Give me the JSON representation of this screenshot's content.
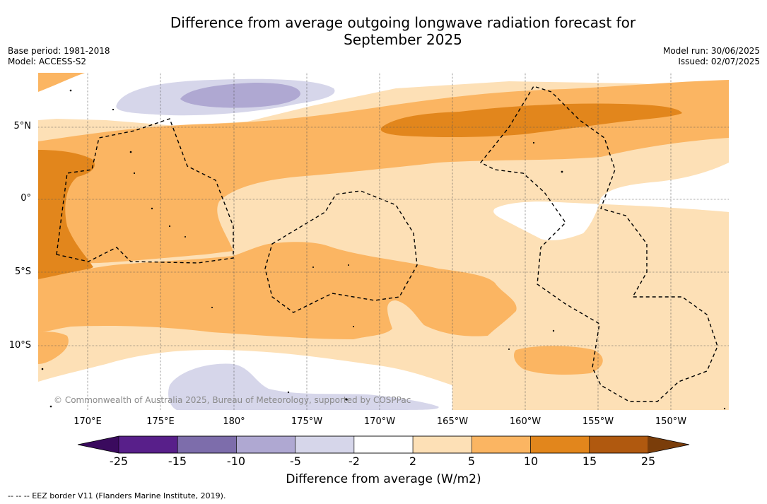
{
  "title": "Difference from average outgoing longwave radiation forecast for September 2025",
  "title_line1": "Difference from average outgoing longwave radiation forecast for",
  "title_line2": "September 2025",
  "base_period": "Base period: 1981-2018",
  "model": "Model: ACCESS-S2",
  "model_run": "Model run: 30/06/2025",
  "issued": "Issued: 02/07/2025",
  "lat_labels": [
    "5°N",
    "0°",
    "5°S",
    "10°S"
  ],
  "lon_labels": [
    "170°E",
    "175°E",
    "180°",
    "175°W",
    "170°W",
    "165°W",
    "160°W",
    "155°W",
    "150°W"
  ],
  "copyright": "© Commonwealth of Australia 2025, Bureau of Meteorology, supported by COSPPac",
  "colorbar": {
    "ticks": [
      "-25",
      "-15",
      "-10",
      "-5",
      "-2",
      "2",
      "5",
      "10",
      "15",
      "25"
    ],
    "colors": [
      "#581f8a",
      "#7d6dab",
      "#afa8d2",
      "#d6d6ea",
      "#ffffff",
      "#fde0b6",
      "#fbb562",
      "#e2861c",
      "#b0590f"
    ],
    "under_color": "#3a0a5e",
    "over_color": "#7a3d0a",
    "label": "Difference from average (W/m2)"
  },
  "footnote": "--  --  -- EEZ border V11 (Flanders Marine Institute, 2019)."
}
